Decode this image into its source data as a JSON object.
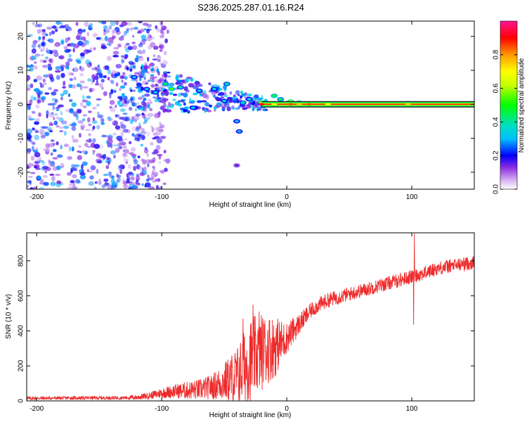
{
  "title": "S236.2025.287.01.16.R24",
  "colors": {
    "snr_line": "#ee2b2b",
    "axis": "#000000",
    "background": "#ffffff"
  },
  "chart_data": [
    {
      "type": "heatmap",
      "name": "spectrogram",
      "xlabel": "Height of straight line (km)",
      "ylabel": "Frequency (Hz)",
      "xlim": [
        -208,
        150
      ],
      "ylim": [
        -25,
        24.5
      ],
      "xticks": [
        -200,
        -100,
        0,
        100
      ],
      "xtick_labels": [
        "-200",
        "-100",
        "0",
        "100"
      ],
      "yticks": [
        -20,
        -10,
        0,
        10,
        20
      ],
      "ytick_labels": [
        "-20",
        "-10",
        "0",
        "10",
        "20"
      ],
      "colorbar": {
        "label": "Normalized spectral amplitude",
        "range": [
          0,
          1
        ],
        "ticks": [
          0.0,
          0.2,
          0.4,
          0.6,
          0.8
        ],
        "tick_labels": [
          "0.0",
          "0.2",
          "0.4",
          "0.6",
          "0.8"
        ]
      },
      "carrier": {
        "frequency": 0,
        "x_start": -20,
        "x_end": 150,
        "amplitude": 0.8
      },
      "features": [
        {
          "x": -20,
          "y": 0.5,
          "amplitude": 0.75
        },
        {
          "x": -10,
          "y": 2.5,
          "amplitude": 0.5
        },
        {
          "x": -5,
          "y": 1.5,
          "amplitude": 0.45
        },
        {
          "x": 3,
          "y": 0.8,
          "amplitude": 0.7
        },
        {
          "x": 10,
          "y": 0.5,
          "amplitude": 0.6
        },
        {
          "x": 18,
          "y": 0.2,
          "amplitude": 0.7
        },
        {
          "x": 33,
          "y": 0.2,
          "amplitude": 0.55
        },
        {
          "x": 97,
          "y": 0.3,
          "amplitude": 0.6
        },
        {
          "x": -35,
          "y": 0.5,
          "amplitude": 0.4
        },
        {
          "x": -30,
          "y": 1.5,
          "amplitude": 0.35
        },
        {
          "x": -50,
          "y": 1.0,
          "amplitude": 0.35
        },
        {
          "x": -48,
          "y": 6.0,
          "amplitude": 0.4
        },
        {
          "x": -58,
          "y": 4.5,
          "amplitude": 0.35
        },
        {
          "x": -70,
          "y": 4.0,
          "amplitude": 0.35
        },
        {
          "x": -75,
          "y": -1.0,
          "amplitude": 0.35
        },
        {
          "x": -85,
          "y": 5.0,
          "amplitude": 0.4
        },
        {
          "x": -92,
          "y": 4.5,
          "amplitude": 0.55
        },
        {
          "x": -97,
          "y": 6.0,
          "amplitude": 0.45
        },
        {
          "x": -105,
          "y": 3.5,
          "amplitude": 0.35
        },
        {
          "x": -112,
          "y": 4.5,
          "amplitude": 0.3
        },
        {
          "x": -122,
          "y": 8.0,
          "amplitude": 0.3
        },
        {
          "x": -40,
          "y": -5.0,
          "amplitude": 0.3
        },
        {
          "x": -38,
          "y": -8.0,
          "amplitude": 0.3
        },
        {
          "x": -40,
          "y": -18.0,
          "amplitude": 0.15
        }
      ],
      "noise_region": {
        "x_start": -208,
        "x_end": -110,
        "amplitude_max": 0.25
      }
    },
    {
      "type": "line",
      "name": "snr",
      "xlabel": "Height of straight line (km)",
      "ylabel": "SNR (10 * v/v)",
      "xlim": [
        -208,
        150
      ],
      "ylim": [
        0,
        960
      ],
      "xticks": [
        -200,
        -100,
        0,
        100
      ],
      "xtick_labels": [
        "-200",
        "-100",
        "0",
        "100"
      ],
      "yticks": [
        0,
        200,
        400,
        600,
        800
      ],
      "ytick_labels": [
        "0",
        "200",
        "400",
        "600",
        "800"
      ],
      "series": [
        {
          "name": "SNR",
          "color": "#ee2b2b",
          "points": [
            [
              -208,
              15
            ],
            [
              -190,
              16
            ],
            [
              -170,
              17
            ],
            [
              -150,
              17
            ],
            [
              -130,
              18
            ],
            [
              -120,
              20
            ],
            [
              -110,
              30
            ],
            [
              -100,
              45
            ],
            [
              -90,
              55
            ],
            [
              -80,
              60
            ],
            [
              -70,
              65
            ],
            [
              -60,
              80
            ],
            [
              -50,
              110
            ],
            [
              -40,
              140
            ],
            [
              -35,
              180
            ],
            [
              -30,
              230
            ],
            [
              -25,
              260
            ],
            [
              -20,
              280
            ],
            [
              -15,
              300
            ],
            [
              -10,
              310
            ],
            [
              -5,
              330
            ],
            [
              0,
              360
            ],
            [
              5,
              400
            ],
            [
              10,
              440
            ],
            [
              15,
              480
            ],
            [
              20,
              520
            ],
            [
              25,
              545
            ],
            [
              30,
              565
            ],
            [
              35,
              580
            ],
            [
              40,
              590
            ],
            [
              50,
              610
            ],
            [
              60,
              630
            ],
            [
              70,
              650
            ],
            [
              80,
              670
            ],
            [
              90,
              690
            ],
            [
              100,
              710
            ],
            [
              110,
              730
            ],
            [
              120,
              755
            ],
            [
              130,
              770
            ],
            [
              140,
              780
            ],
            [
              150,
              790
            ]
          ],
          "noise_envelope": [
            [
              -208,
              10
            ],
            [
              -130,
              10
            ],
            [
              -110,
              20
            ],
            [
              -90,
              40
            ],
            [
              -60,
              70
            ],
            [
              -50,
              110
            ],
            [
              -40,
              170
            ],
            [
              -30,
              240
            ],
            [
              -20,
              220
            ],
            [
              -10,
              180
            ],
            [
              0,
              90
            ],
            [
              10,
              60
            ],
            [
              20,
              45
            ],
            [
              50,
              40
            ],
            [
              100,
              40
            ],
            [
              150,
              40
            ]
          ],
          "spikes": [
            {
              "x": -27,
              "y": 550
            },
            {
              "x": -22,
              "y": 510
            },
            {
              "x": -35,
              "y": 470
            },
            {
              "x": -18,
              "y": 440
            },
            {
              "x": 102,
              "y": 955
            },
            {
              "x": 101.5,
              "y": 435
            }
          ]
        }
      ]
    }
  ]
}
